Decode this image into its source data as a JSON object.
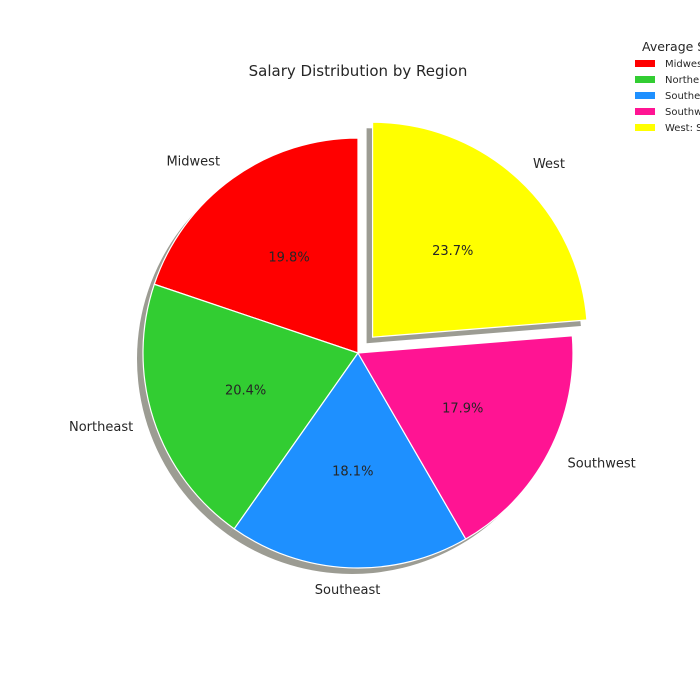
{
  "chart_data": {
    "type": "pie",
    "title": "Salary Distribution by Region",
    "categories": [
      "Midwest",
      "Northeast",
      "Southeast",
      "Southwest",
      "West"
    ],
    "percentages": [
      19.8,
      20.4,
      18.1,
      17.9,
      23.7
    ],
    "pct_labels": [
      "19.8%",
      "20.4%",
      "18.1%",
      "17.9%",
      "23.7%"
    ],
    "colors": [
      "#ff0000",
      "#32cd32",
      "#1e90ff",
      "#ff1493",
      "#ffff00"
    ],
    "exploded": [
      "West"
    ],
    "shadow": true,
    "start_angle_deg": 90,
    "direction": "counterclockwise",
    "legend": {
      "title": "Average S",
      "placement": "top-right",
      "entries": [
        "Midwes",
        "Northe",
        "Southe",
        "Southw",
        "West: S"
      ]
    }
  }
}
